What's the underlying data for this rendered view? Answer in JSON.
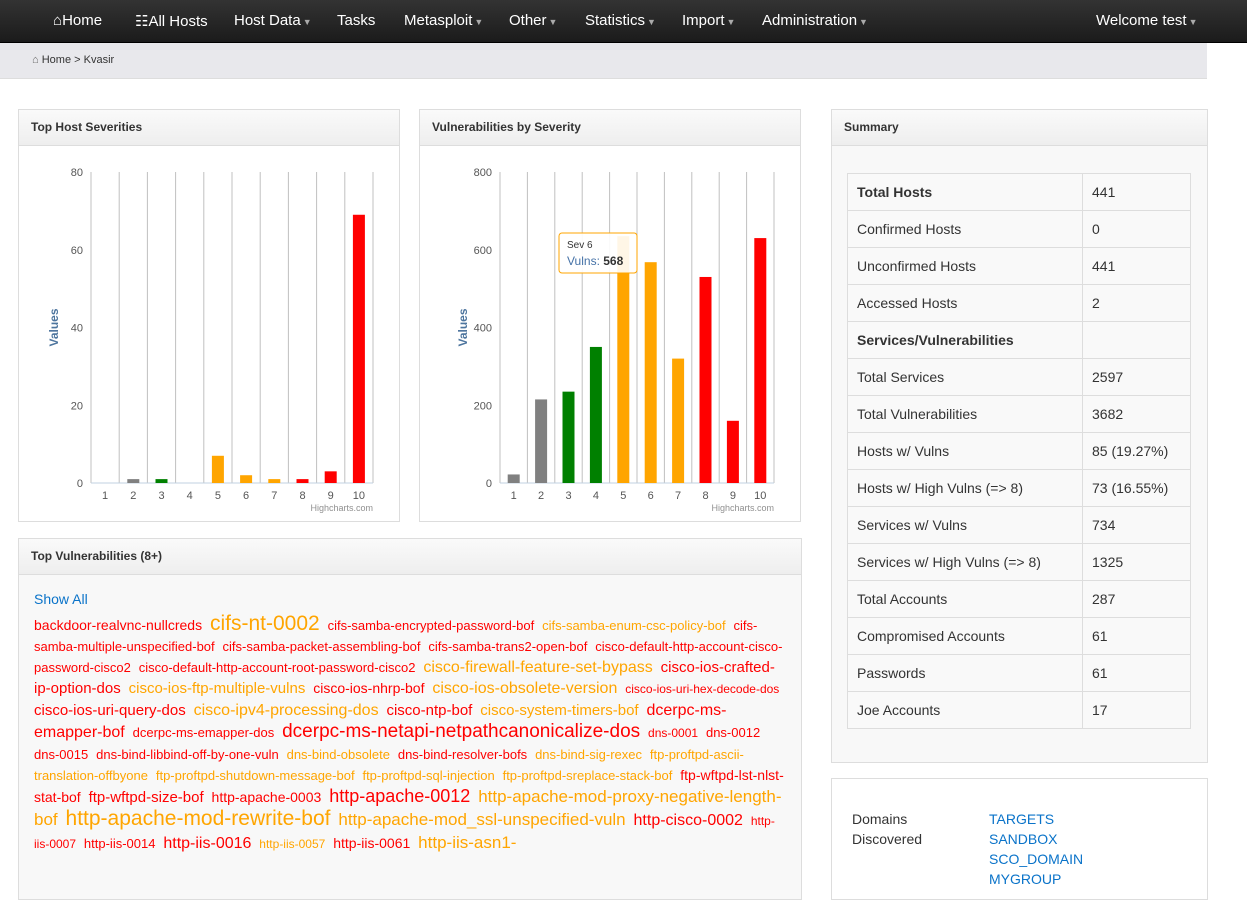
{
  "nav": {
    "items": [
      "Home",
      "All Hosts",
      "Host Data",
      "Tasks",
      "Metasploit",
      "Other",
      "Statistics",
      "Import",
      "Administration"
    ],
    "welcome": "Welcome test"
  },
  "breadcrumb": {
    "home": "Home",
    "sep": ">",
    "current": "Kvasir"
  },
  "colors": {
    "gray": "#808080",
    "green": "#008000",
    "orange": "#ffa500",
    "red": "#ff0000"
  },
  "chart_data": [
    {
      "type": "bar",
      "title": "Top Host Severities",
      "ylabel": "Values",
      "categories": [
        "1",
        "2",
        "3",
        "4",
        "5",
        "6",
        "7",
        "8",
        "9",
        "10"
      ],
      "values": [
        0,
        1,
        1,
        0,
        7,
        2,
        1,
        1,
        3,
        69
      ],
      "ylim": [
        0,
        80
      ],
      "yticks": [
        0,
        20,
        40,
        60,
        80
      ],
      "credit": "Highcharts.com",
      "grid": true
    },
    {
      "type": "bar",
      "title": "Vulnerabilities by Severity",
      "ylabel": "Values",
      "categories": [
        "1",
        "2",
        "3",
        "4",
        "5",
        "6",
        "7",
        "8",
        "9",
        "10"
      ],
      "values": [
        22,
        215,
        235,
        350,
        635,
        568,
        320,
        530,
        160,
        630
      ],
      "ylim": [
        0,
        800
      ],
      "yticks": [
        0,
        200,
        400,
        600,
        800
      ],
      "credit": "Highcharts.com",
      "grid": true,
      "tooltip": {
        "title": "Sev 6",
        "series": "Vulns",
        "value": "568"
      }
    }
  ],
  "bar_colors": [
    "gray",
    "gray",
    "green",
    "green",
    "orange",
    "orange",
    "orange",
    "red",
    "red",
    "red"
  ],
  "summary": {
    "title": "Summary",
    "rows": [
      [
        "Total Hosts",
        "441",
        true
      ],
      [
        "Confirmed Hosts",
        "0"
      ],
      [
        "Unconfirmed Hosts",
        "441"
      ],
      [
        "Accessed Hosts",
        "2"
      ],
      [
        "Services/Vulnerabilities",
        "",
        true
      ],
      [
        "Total Services",
        "2597"
      ],
      [
        "Total Vulnerabilities",
        "3682"
      ],
      [
        "Hosts w/ Vulns",
        "85 (19.27%)"
      ],
      [
        "Hosts w/ High Vulns (=> 8)",
        "73 (16.55%)"
      ],
      [
        "Services w/ Vulns",
        "734"
      ],
      [
        "Services w/ High Vulns (=> 8)",
        "1325"
      ],
      [
        "Total Accounts",
        "287"
      ],
      [
        "Compromised Accounts",
        "61"
      ],
      [
        "Passwords",
        "61"
      ],
      [
        "Joe Accounts",
        "17"
      ]
    ]
  },
  "domains": {
    "label": "Domains Discovered",
    "items": [
      "TARGETS",
      "SANDBOX",
      "SCO_DOMAIN",
      "MYGROUP"
    ]
  },
  "vulns": {
    "title": "Top Vulnerabilities (8+)",
    "show_all": "Show All",
    "tags": [
      [
        "backdoor-realvnc-nullcreds",
        14,
        "r"
      ],
      [
        "cifs-nt-0002",
        21,
        "o"
      ],
      [
        "cifs-samba-encrypted-password-bof",
        13,
        "r"
      ],
      [
        "cifs-samba-enum-csc-policy-bof",
        13,
        "o"
      ],
      [
        "cifs-samba-multiple-unspecified-bof",
        13,
        "r"
      ],
      [
        "cifs-samba-packet-assembling-bof",
        13,
        "r"
      ],
      [
        "cifs-samba-trans2-open-bof",
        13,
        "r"
      ],
      [
        "cisco-default-http-account-cisco-password-cisco2",
        13,
        "r"
      ],
      [
        "cisco-default-http-account-root-password-cisco2",
        13,
        "r"
      ],
      [
        "cisco-firewall-feature-set-bypass",
        16,
        "o"
      ],
      [
        "cisco-ios-crafted-ip-option-dos",
        15,
        "r"
      ],
      [
        "cisco-ios-ftp-multiple-vulns",
        15,
        "o"
      ],
      [
        "cisco-ios-nhrp-bof",
        14,
        "r"
      ],
      [
        "cisco-ios-obsolete-version",
        16,
        "o"
      ],
      [
        "cisco-ios-uri-hex-decode-dos",
        12,
        "r"
      ],
      [
        "cisco-ios-uri-query-dos",
        15,
        "r"
      ],
      [
        "cisco-ipv4-processing-dos",
        16,
        "o"
      ],
      [
        "cisco-ntp-bof",
        15,
        "r"
      ],
      [
        "cisco-system-timers-bof",
        15,
        "o"
      ],
      [
        "dcerpc-ms-emapper-bof",
        16,
        "r"
      ],
      [
        "dcerpc-ms-emapper-dos",
        13,
        "r"
      ],
      [
        "dcerpc-ms-netapi-netpathcanonicalize-dos",
        19,
        "r"
      ],
      [
        "dns-0001",
        12,
        "r"
      ],
      [
        "dns-0012",
        13,
        "r"
      ],
      [
        "dns-0015",
        13,
        "r"
      ],
      [
        "dns-bind-libbind-off-by-one-vuln",
        13,
        "r"
      ],
      [
        "dns-bind-obsolete",
        13,
        "o"
      ],
      [
        "dns-bind-resolver-bofs",
        13,
        "r"
      ],
      [
        "dns-bind-sig-rexec",
        13,
        "o"
      ],
      [
        "ftp-proftpd-ascii-translation-offbyone",
        13,
        "o"
      ],
      [
        "ftp-proftpd-shutdown-message-bof",
        13,
        "o"
      ],
      [
        "ftp-proftpd-sql-injection",
        13,
        "o"
      ],
      [
        "ftp-proftpd-sreplace-stack-bof",
        13,
        "o"
      ],
      [
        "ftp-wftpd-lst-nlst-stat-bof",
        14,
        "r"
      ],
      [
        "ftp-wftpd-size-bof",
        15,
        "r"
      ],
      [
        "http-apache-0003",
        14,
        "r"
      ],
      [
        "http-apache-0012",
        18,
        "r"
      ],
      [
        "http-apache-mod-proxy-negative-length-bof",
        17,
        "o"
      ],
      [
        "http-apache-mod-rewrite-bof",
        21,
        "o"
      ],
      [
        "http-apache-mod_ssl-unspecified-vuln",
        17,
        "o"
      ],
      [
        "http-cisco-0002",
        16,
        "r"
      ],
      [
        "http-iis-0007",
        12,
        "r"
      ],
      [
        "http-iis-0014",
        13,
        "r"
      ],
      [
        "http-iis-0016",
        16,
        "r"
      ],
      [
        "http-iis-0057",
        12,
        "o"
      ],
      [
        "http-iis-0061",
        14,
        "r"
      ],
      [
        "http-iis-asn1-",
        17,
        "o"
      ]
    ]
  }
}
